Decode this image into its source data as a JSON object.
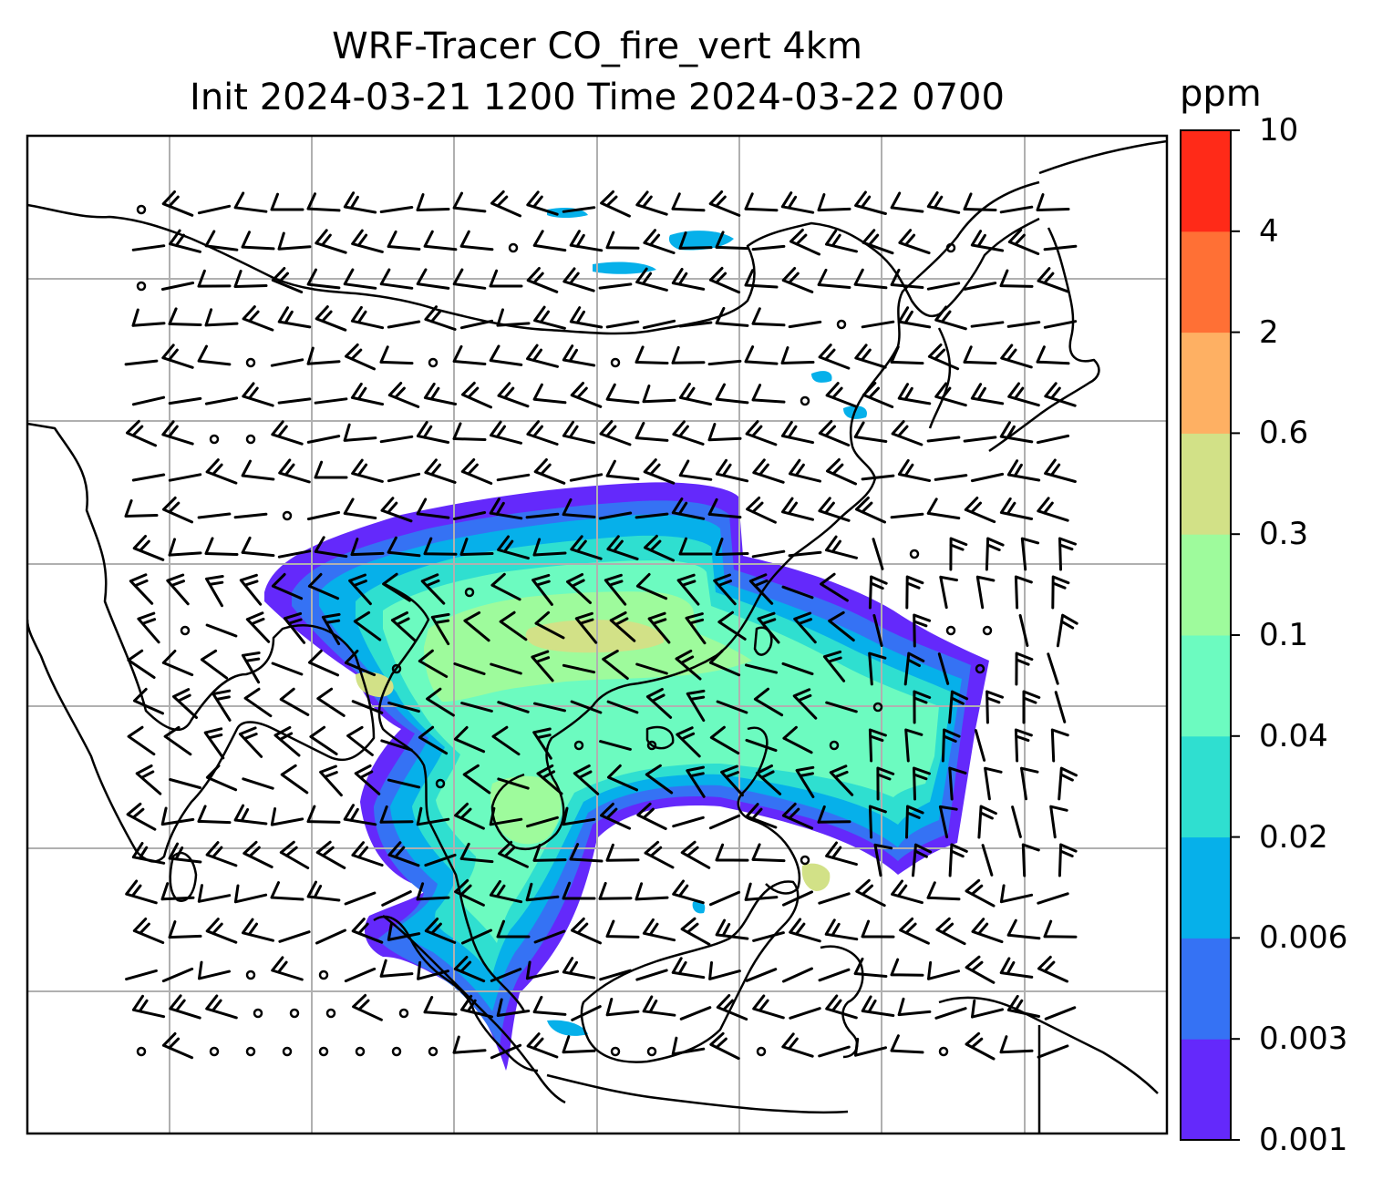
{
  "title": {
    "line1": "WRF-Tracer CO_fire_vert 4km",
    "line2": "Init 2024-03-21 1200 Time 2024-03-22 0700"
  },
  "colorbar": {
    "unit": "ppm",
    "levels": [
      "0.001",
      "0.003",
      "0.006",
      "0.02",
      "0.04",
      "0.1",
      "0.3",
      "0.6",
      "2",
      "4",
      "10"
    ],
    "colors": [
      "#6429fb",
      "#3572f4",
      "#06b0ea",
      "#2fdfd0",
      "#6cfbc0",
      "#9efb9c",
      "#d2e187",
      "#feb063",
      "#ff7035",
      "#ff2a18"
    ]
  },
  "map": {
    "type": "filled contour map with wind barbs",
    "variable": "CO_fire_vert",
    "gridlines": true,
    "coastlines": true,
    "wind_barbs": true
  },
  "colors": {
    "coastline": "#000000",
    "gridline": "#b0b0b0",
    "frame": "#000000"
  }
}
